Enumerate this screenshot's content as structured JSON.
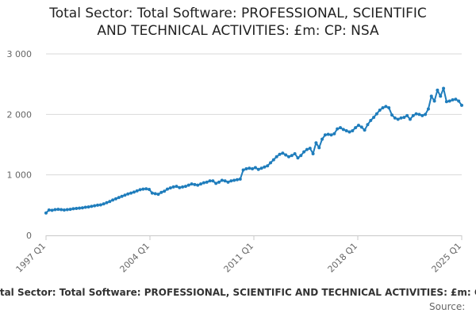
{
  "chart_data": {
    "type": "line",
    "title_lines": [
      "Total Sector: Total Software: PROFESSIONAL, SCIENTIFIC",
      "AND TECHNICAL ACTIVITIES: £m: CP: NSA"
    ],
    "series_name": "Total Sector: Total Software: PROFESSIONAL, SCIENTIFIC AND TECHNICAL ACTIVITIES: £m: CP: NSA",
    "source_label": "Source:",
    "x_start": "1997 Q1",
    "x_end": "2025 Q1",
    "x_tick_labels": [
      "1997 Q1",
      "2004 Q1",
      "2011 Q1",
      "2018 Q1",
      "2025 Q1"
    ],
    "y_tick_labels": [
      "0",
      "1 000",
      "2 000",
      "3 000"
    ],
    "y_ticks": [
      0,
      1000,
      2000,
      3000
    ],
    "ylim": [
      0,
      3000
    ],
    "line_color": "#1f7dbc",
    "grid_color": "#d9d9d9",
    "values": [
      370,
      420,
      415,
      425,
      430,
      425,
      420,
      425,
      430,
      440,
      445,
      450,
      455,
      465,
      470,
      480,
      490,
      500,
      505,
      520,
      540,
      560,
      585,
      605,
      625,
      645,
      665,
      685,
      700,
      715,
      735,
      755,
      765,
      770,
      760,
      700,
      690,
      680,
      710,
      730,
      765,
      785,
      800,
      810,
      790,
      800,
      810,
      830,
      850,
      840,
      830,
      850,
      870,
      880,
      900,
      900,
      860,
      880,
      910,
      900,
      880,
      900,
      910,
      920,
      930,
      1080,
      1100,
      1110,
      1100,
      1120,
      1090,
      1110,
      1130,
      1150,
      1200,
      1250,
      1300,
      1340,
      1360,
      1330,
      1300,
      1320,
      1350,
      1280,
      1320,
      1380,
      1420,
      1440,
      1350,
      1530,
      1450,
      1590,
      1660,
      1670,
      1660,
      1680,
      1760,
      1780,
      1750,
      1730,
      1710,
      1730,
      1780,
      1820,
      1790,
      1740,
      1830,
      1900,
      1950,
      2010,
      2070,
      2110,
      2130,
      2110,
      1990,
      1940,
      1920,
      1940,
      1950,
      1980,
      1920,
      1980,
      2010,
      2000,
      1980,
      2000,
      2090,
      2300,
      2220,
      2400,
      2300,
      2430,
      2210,
      2220,
      2240,
      2250,
      2220,
      2150
    ]
  }
}
